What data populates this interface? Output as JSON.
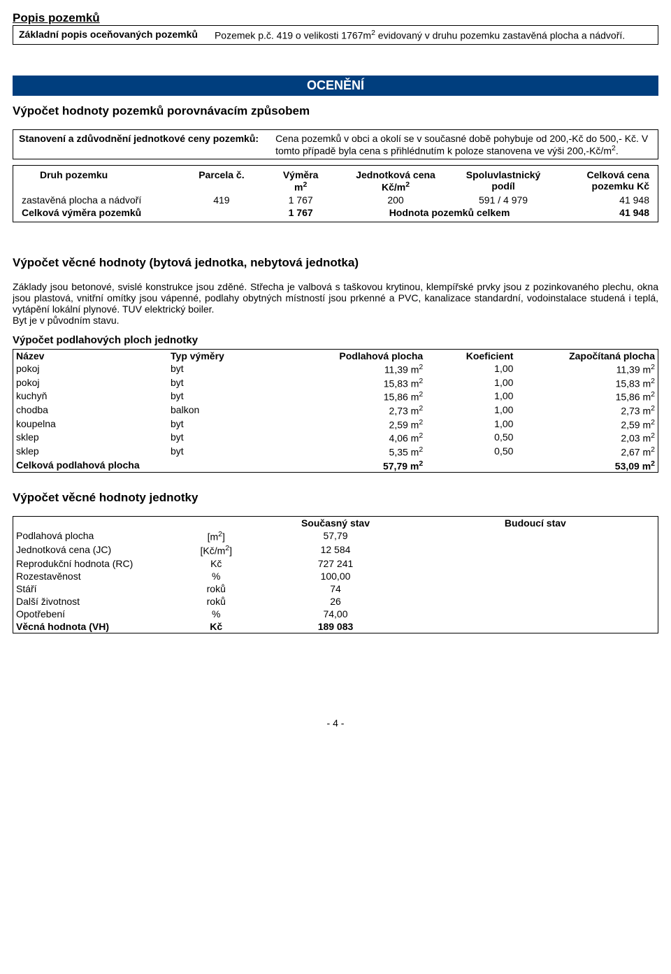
{
  "colors": {
    "banner_bg": "#003e7e",
    "banner_fg": "#ffffff",
    "text": "#000000",
    "border": "#000000",
    "page_bg": "#ffffff"
  },
  "popis": {
    "title": "Popis pozemků",
    "label": "Základní popis oceňovaných pozemků",
    "text_pre_sup": "Pozemek p.č. 419 o velikosti 1767m",
    "sup": "2",
    "text_post_sup": " evidovaný v druhu pozemku zastavěná plocha a nádvoří."
  },
  "oceneni_banner": "OCENĚNÍ",
  "vypocet_pozemku_title": "Výpočet hodnoty pozemků porovnávacím způsobem",
  "stanoveni": {
    "label": "Stanovení a zdůvodnění jednotkové ceny pozemků:",
    "text_pre": "Cena pozemků v obci  a okolí se v současné době pohybuje od 200,-Kč do 500,- Kč. V tomto případě byla cena s přihlédnutím k poloze stanovena ve výši 200,-Kč/m",
    "sup": "2",
    "text_post": "."
  },
  "land_table": {
    "headers": {
      "druh": "Druh pozemku",
      "parcela": "Parcela č.",
      "vymera_l1": "Výměra",
      "vymera_l2_pre": "m",
      "jedn_l1": "Jednotková cena",
      "jedn_l2_pre": "Kč/m",
      "spolu_l1": "Spoluvlastnický",
      "spolu_l2": "podíl",
      "celk_l1": "Celková cena",
      "celk_l2": "pozemku Kč"
    },
    "row": {
      "druh": "zastavěná plocha a nádvoří",
      "parcela": "419",
      "vymera": "1 767",
      "jedn": "200",
      "spolu": "591 / 4 979",
      "celk": "41 948"
    },
    "total": {
      "label": "Celková výměra pozemků",
      "vymera": "1 767",
      "hodnota_label": "Hodnota pozemků celkem",
      "celk": "41 948"
    }
  },
  "vecna_title": "Výpočet věcné hodnoty (bytová jednotka, nebytová jednotka)",
  "vecna_text": "Základy jsou betonové, svislé konstrukce jsou zděné.  Střecha je valbová s taškovou krytinou, klempířské prvky jsou z pozinkovaného plechu,  okna jsou plastová,  vnitřní omítky jsou vápenné,  podlahy obytných místností jsou prkenné a PVC, kanalizace standardní, vodoinstalace studená i teplá, vytápění lokální plynové. TUV elektrický boiler.",
  "vecna_text2": "Byt je v původním stavu.",
  "floor_title": "Výpočet podlahových ploch jednotky",
  "floor_headers": {
    "nazev": "Název",
    "typ": "Typ výměry",
    "plocha": "Podlahová plocha",
    "koef": "Koeficient",
    "zapoc": "Započítaná plocha"
  },
  "floor_rows": [
    {
      "nazev": "pokoj",
      "typ": "byt",
      "plocha": "11,39 m",
      "koef": "1,00",
      "zapoc": "11,39 m"
    },
    {
      "nazev": "pokoj",
      "typ": "byt",
      "plocha": "15,83 m",
      "koef": "1,00",
      "zapoc": "15,83 m"
    },
    {
      "nazev": "kuchyň",
      "typ": "byt",
      "plocha": "15,86 m",
      "koef": "1,00",
      "zapoc": "15,86 m"
    },
    {
      "nazev": "chodba",
      "typ": "balkon",
      "plocha": "2,73 m",
      "koef": "1,00",
      "zapoc": "2,73 m"
    },
    {
      "nazev": "koupelna",
      "typ": "byt",
      "plocha": "2,59 m",
      "koef": "1,00",
      "zapoc": "2,59 m"
    },
    {
      "nazev": "sklep",
      "typ": "byt",
      "plocha": "4,06 m",
      "koef": "0,50",
      "zapoc": "2,03 m"
    },
    {
      "nazev": "sklep",
      "typ": "byt",
      "plocha": "5,35 m",
      "koef": "0,50",
      "zapoc": "2,67 m"
    }
  ],
  "floor_total": {
    "label": "Celková podlahová plocha",
    "plocha": "57,79 m",
    "zapoc": "53,09 m"
  },
  "val_title": "Výpočet věcné hodnoty jednotky",
  "val_headers": {
    "soucasny": "Současný stav",
    "budouci": "Budoucí stav"
  },
  "val_rows": [
    {
      "label": "Podlahová plocha",
      "unit_pre": "[m",
      "unit_sup": "2",
      "unit_post": "]",
      "val": "57,79"
    },
    {
      "label": "Jednotková cena (JC)",
      "unit_pre": "[Kč/m",
      "unit_sup": "2",
      "unit_post": "]",
      "val": "12 584"
    },
    {
      "label": "Reprodukční hodnota (RC)",
      "unit_pre": "Kč",
      "unit_sup": "",
      "unit_post": "",
      "val": "727 241"
    },
    {
      "label": "Rozestavěnost",
      "unit_pre": "%",
      "unit_sup": "",
      "unit_post": "",
      "val": "100,00"
    },
    {
      "label": "Stáří",
      "unit_pre": "roků",
      "unit_sup": "",
      "unit_post": "",
      "val": "74"
    },
    {
      "label": "Další životnost",
      "unit_pre": "roků",
      "unit_sup": "",
      "unit_post": "",
      "val": "26"
    },
    {
      "label": "Opotřebení",
      "unit_pre": "%",
      "unit_sup": "",
      "unit_post": "",
      "val": "74,00"
    }
  ],
  "val_total": {
    "label": "Věcná hodnota (VH)",
    "unit": "Kč",
    "val": "189 083"
  },
  "page_num": "- 4 -",
  "sq": "2"
}
